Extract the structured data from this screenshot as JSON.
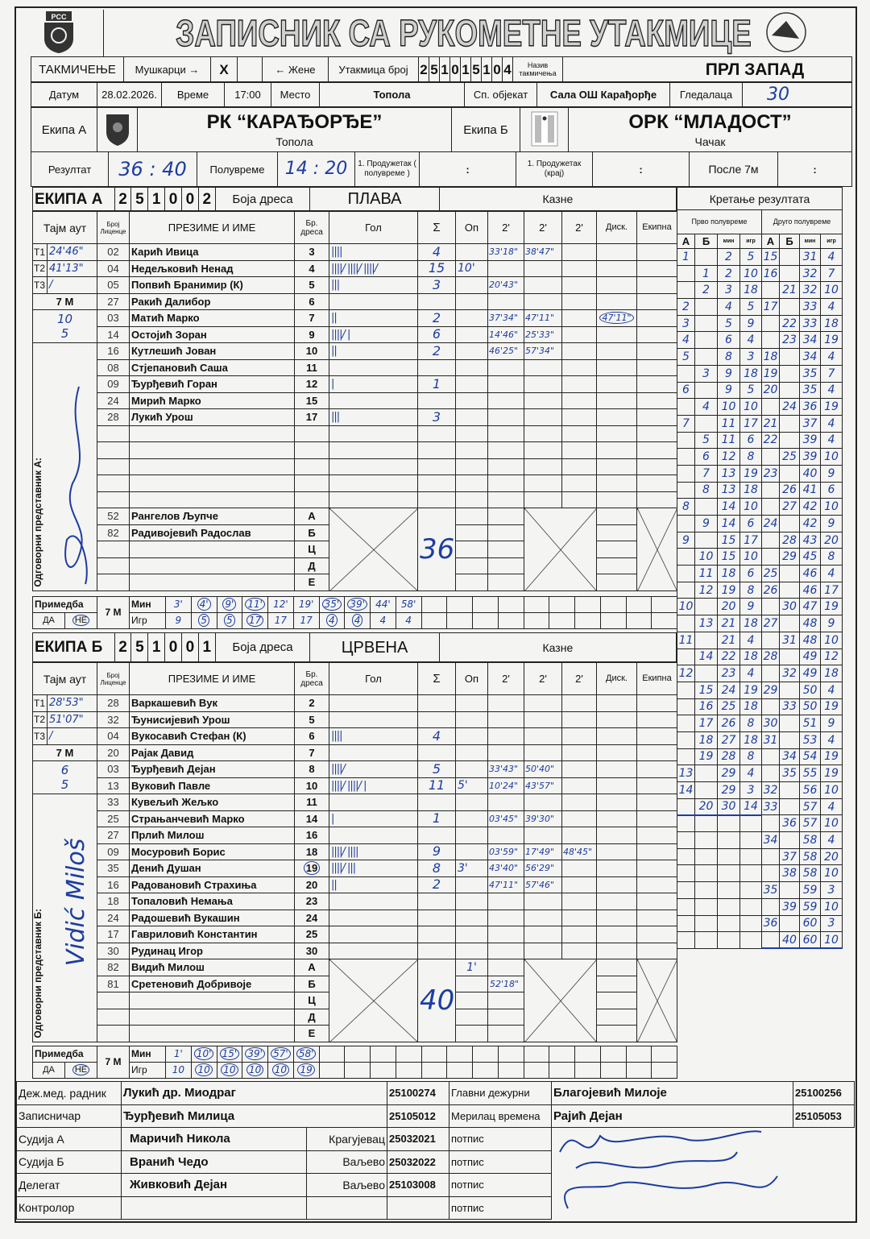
{
  "header": {
    "title": "ЗАПИСНИК СА РУКОМЕТНЕ УТАКМИЦЕ",
    "logo_left": "РСС",
    "competition_label": "ТАКМИЧЕЊЕ",
    "men_label": "Мушкарци →",
    "men_mark": "X",
    "women_mark": "",
    "women_label": "← Жене",
    "match_no_label": "Утакмица број",
    "match_no_digits": [
      "2",
      "5",
      "1",
      "0",
      "1",
      "5",
      "1",
      "0",
      "4"
    ],
    "competition_name_label": "Назив такмичења",
    "competition_name": "ПРЛ ЗАПАД",
    "date_label": "Датум",
    "date": "28.02.2026.",
    "time_label": "Време",
    "time": "17:00",
    "place_label": "Место",
    "place": "Топола",
    "venue_label": "Сп. објекат",
    "venue": "Сала ОШ Карађорђе",
    "spectators_label": "Гледалаца",
    "spectators": "30",
    "team_a_label": "Екипа А",
    "team_a_name": "РК “КАРАЂОРЂЕ”",
    "team_a_city": "Топола",
    "team_b_label": "Екипа Б",
    "team_b_name": "ОРК “МЛАДОСТ”",
    "team_b_city": "Чачак",
    "result_label": "Резултат",
    "result_a": "36",
    "result_b": "40",
    "halftime_label": "Полувреме",
    "halftime_a": "14",
    "halftime_b": "20",
    "et1_half_label": "1. Продужетак ( полувреме )",
    "et1_end_label": "1. Продужетак (крај)",
    "after7m_label": "После 7м",
    "colon": ":"
  },
  "columns": {
    "timeout": "Тајм аут",
    "license": "Број Лиценце",
    "name": "ПРЕЗИМЕ И ИМЕ",
    "jersey": "Бр. дреса",
    "goals": "Гол",
    "sum": "Σ",
    "warning": "Оп",
    "p2": "2'",
    "disq": "Диск.",
    "team": "Екипна",
    "penalties": "Казне",
    "jersey_color": "Боја дреса",
    "rep": "Одговорни представник",
    "remark": "Примедба",
    "yes": "ДА",
    "no": "НЕ",
    "seven_m": "7 M",
    "min": "Мин",
    "player": "Игр"
  },
  "teams": [
    {
      "label": "ЕКИПА А",
      "code": [
        "2",
        "5",
        "1",
        "0",
        "0",
        "2"
      ],
      "color": "ПЛАВА",
      "rep_label": "Одговорни представник А:",
      "timeouts": [
        {
          "t": "T1",
          "v": "24'46\""
        },
        {
          "t": "T2",
          "v": "41'13\""
        },
        {
          "t": "T3",
          "v": "/"
        }
      ],
      "seven_m_attempts": "10",
      "seven_m_goals": "5",
      "total": "36",
      "remark_selected": "НЕ",
      "players": [
        {
          "lic": "02",
          "name": "Карић Ивица",
          "no": "3",
          "goals": 4,
          "sum": "4",
          "op": "",
          "p2": [
            "33'18\"",
            "38'47\""
          ],
          "disk": ""
        },
        {
          "lic": "04",
          "name": "Недељковић Ненад",
          "no": "4",
          "goals": 15,
          "sum": "15",
          "op": "10'",
          "p2": [],
          "disk": ""
        },
        {
          "lic": "05",
          "name": "Попвић Бранимир  (К)",
          "no": "5",
          "goals": 3,
          "sum": "3",
          "op": "",
          "p2": [
            "20'43\""
          ],
          "disk": ""
        },
        {
          "lic": "27",
          "name": "Ракић Далибор",
          "no": "6",
          "goals": 0,
          "sum": "",
          "op": "",
          "p2": [],
          "disk": ""
        },
        {
          "lic": "03",
          "name": "Матић Марко",
          "no": "7",
          "goals": 2,
          "sum": "2",
          "op": "",
          "p2": [
            "37'34\"",
            "47'11\""
          ],
          "disk": "47'11\""
        },
        {
          "lic": "14",
          "name": "Остојић Зоран",
          "no": "9",
          "goals": 6,
          "sum": "6",
          "op": "",
          "p2": [
            "14'46\"",
            "25'33\""
          ],
          "disk": ""
        },
        {
          "lic": "16",
          "name": "Кутлешић Јован",
          "no": "10",
          "goals": 2,
          "sum": "2",
          "op": "",
          "p2": [
            "46'25\"",
            "57'34\""
          ],
          "disk": ""
        },
        {
          "lic": "08",
          "name": "Стјепановић Саша",
          "no": "11",
          "goals": 0,
          "sum": "",
          "op": "",
          "p2": [],
          "disk": ""
        },
        {
          "lic": "09",
          "name": "Ђурђевић Горан",
          "no": "12",
          "goals": 1,
          "sum": "1",
          "op": "",
          "p2": [],
          "disk": ""
        },
        {
          "lic": "24",
          "name": "Мирић Марко",
          "no": "15",
          "goals": 0,
          "sum": "",
          "op": "",
          "p2": [],
          "disk": ""
        },
        {
          "lic": "28",
          "name": "Лукић Урош",
          "no": "17",
          "goals": 3,
          "sum": "3",
          "op": "",
          "p2": [],
          "disk": ""
        }
      ],
      "officials": [
        {
          "lic": "52",
          "name": "Рангелов Љупче",
          "letter": "А",
          "op": "",
          "p2": ""
        },
        {
          "lic": "82",
          "name": "Радивојевић Радослав",
          "letter": "Б",
          "op": "",
          "p2": ""
        },
        {
          "lic": "",
          "name": "",
          "letter": "Ц",
          "op": "",
          "p2": ""
        },
        {
          "lic": "",
          "name": "",
          "letter": "Д",
          "op": "",
          "p2": ""
        },
        {
          "lic": "",
          "name": "",
          "letter": "Е",
          "op": "",
          "p2": ""
        }
      ],
      "seven_m": [
        {
          "min": "3'",
          "pl": "9",
          "circled": false
        },
        {
          "min": "4'",
          "pl": "5",
          "circled": true
        },
        {
          "min": "9'",
          "pl": "5",
          "circled": true
        },
        {
          "min": "11'",
          "pl": "17",
          "circled": true
        },
        {
          "min": "12'",
          "pl": "17",
          "circled": false
        },
        {
          "min": "19'",
          "pl": "17",
          "circled": false
        },
        {
          "min": "35'",
          "pl": "4",
          "circled": true
        },
        {
          "min": "39'",
          "pl": "4",
          "circled": true
        },
        {
          "min": "44'",
          "pl": "4",
          "circled": false
        },
        {
          "min": "58'",
          "pl": "4",
          "circled": false
        }
      ]
    },
    {
      "label": "ЕКИПА Б",
      "code": [
        "2",
        "5",
        "1",
        "0",
        "0",
        "1"
      ],
      "color": "ЦРВЕНА",
      "rep_label": "Одговорни представник Б:",
      "rep_signature": "Vidić Miloš",
      "timeouts": [
        {
          "t": "T1",
          "v": "28'53\""
        },
        {
          "t": "T2",
          "v": "51'07\""
        },
        {
          "t": "T3",
          "v": "/"
        }
      ],
      "seven_m_attempts": "6",
      "seven_m_goals": "5",
      "total": "40",
      "remark_selected": "НЕ",
      "players": [
        {
          "lic": "28",
          "name": "Варкашевић Вук",
          "no": "2",
          "goals": 0,
          "sum": "",
          "op": "",
          "p2": [],
          "disk": ""
        },
        {
          "lic": "32",
          "name": "Ђунисијевић Урош",
          "no": "5",
          "goals": 0,
          "sum": "",
          "op": "",
          "p2": [],
          "disk": ""
        },
        {
          "lic": "04",
          "name": "Вукосавић Стефан (К)",
          "no": "6",
          "goals": 4,
          "sum": "4",
          "op": "",
          "p2": [],
          "disk": ""
        },
        {
          "lic": "20",
          "name": "Рајак Давид",
          "no": "7",
          "goals": 0,
          "sum": "",
          "op": "",
          "p2": [],
          "disk": ""
        },
        {
          "lic": "03",
          "name": "Ђурђевић Дејан",
          "no": "8",
          "goals": 5,
          "sum": "5",
          "op": "",
          "p2": [
            "33'43\"",
            "50'40\""
          ],
          "disk": ""
        },
        {
          "lic": "13",
          "name": "Вуковић Павле",
          "no": "10",
          "goals": 11,
          "sum": "11",
          "op": "5'",
          "p2": [
            "10'24\"",
            "43'57\""
          ],
          "disk": ""
        },
        {
          "lic": "33",
          "name": "Кувељић Жељко",
          "no": "11",
          "goals": 0,
          "sum": "",
          "op": "",
          "p2": [],
          "disk": ""
        },
        {
          "lic": "25",
          "name": "Страњанчевић Марко",
          "no": "14",
          "goals": 1,
          "sum": "1",
          "op": "",
          "p2": [
            "03'45\"",
            "39'30\""
          ],
          "disk": ""
        },
        {
          "lic": "27",
          "name": "Прлић Милош",
          "no": "16",
          "goals": 0,
          "sum": "",
          "op": "",
          "p2": [],
          "disk": ""
        },
        {
          "lic": "09",
          "name": "Мосуровић Борис",
          "no": "18",
          "goals": 9,
          "sum": "9",
          "op": "",
          "p2": [
            "03'59\"",
            "17'49\"",
            "48'45\""
          ],
          "disk": ""
        },
        {
          "lic": "35",
          "name": "Денић Душан",
          "no": "19",
          "no_circled": true,
          "goals": 8,
          "sum": "8",
          "op": "3'",
          "p2": [
            "43'40\"",
            "56'29\""
          ],
          "disk": ""
        },
        {
          "lic": "16",
          "name": "Радовановић Страхиња",
          "no": "20",
          "goals": 2,
          "sum": "2",
          "op": "",
          "p2": [
            "47'11\"",
            "57'46\""
          ],
          "disk": ""
        },
        {
          "lic": "18",
          "name": "Топаловић Немања",
          "no": "23",
          "goals": 0,
          "sum": "",
          "op": "",
          "p2": [],
          "disk": ""
        },
        {
          "lic": "24",
          "name": "Радошевић Вукашин",
          "no": "24",
          "goals": 0,
          "sum": "",
          "op": "",
          "p2": [],
          "disk": ""
        },
        {
          "lic": "17",
          "name": "Гавриловић Константин",
          "no": "25",
          "goals": 0,
          "sum": "",
          "op": "",
          "p2": [],
          "disk": ""
        },
        {
          "lic": "30",
          "name": "Рудинац Игор",
          "no": "30",
          "goals": 0,
          "sum": "",
          "op": "",
          "p2": [],
          "disk": ""
        }
      ],
      "officials": [
        {
          "lic": "82",
          "name": "Видић Милош",
          "letter": "А",
          "op": "1'",
          "p2": ""
        },
        {
          "lic": "81",
          "name": "Сретеновић Добривоје",
          "letter": "Б",
          "op": "",
          "p2": "52'18\""
        },
        {
          "lic": "",
          "name": "",
          "letter": "Ц",
          "op": "",
          "p2": ""
        },
        {
          "lic": "",
          "name": "",
          "letter": "Д",
          "op": "",
          "p2": ""
        },
        {
          "lic": "",
          "name": "",
          "letter": "Е",
          "op": "",
          "p2": ""
        }
      ],
      "seven_m": [
        {
          "min": "1'",
          "pl": "10",
          "circled": false
        },
        {
          "min": "10'",
          "pl": "10",
          "circled": true
        },
        {
          "min": "15'",
          "pl": "10",
          "circled": true
        },
        {
          "min": "39'",
          "pl": "10",
          "circled": true
        },
        {
          "min": "57'",
          "pl": "10",
          "circled": true
        },
        {
          "min": "58'",
          "pl": "19",
          "circled": true
        }
      ]
    }
  ],
  "progression": {
    "title": "Кретање резултата",
    "first_half_label": "Прво полувреме",
    "second_half_label": "Друго полувреме",
    "cols": [
      "А",
      "Б",
      "мин",
      "игр"
    ],
    "first_half": [
      [
        "1",
        "",
        "2",
        "5"
      ],
      [
        "",
        "1",
        "2",
        "10"
      ],
      [
        "",
        "2",
        "3",
        "18"
      ],
      [
        "2",
        "",
        "4",
        "5"
      ],
      [
        "3",
        "",
        "5",
        "9"
      ],
      [
        "4",
        "",
        "6",
        "4"
      ],
      [
        "5",
        "",
        "8",
        "3"
      ],
      [
        "",
        "3",
        "9",
        "18"
      ],
      [
        "6",
        "",
        "9",
        "5"
      ],
      [
        "",
        "4",
        "10",
        "10"
      ],
      [
        "7",
        "",
        "11",
        "17"
      ],
      [
        "",
        "5",
        "11",
        "6"
      ],
      [
        "",
        "6",
        "12",
        "8"
      ],
      [
        "",
        "7",
        "13",
        "19"
      ],
      [
        "",
        "8",
        "13",
        "18"
      ],
      [
        "8",
        "",
        "14",
        "10"
      ],
      [
        "",
        "9",
        "14",
        "6"
      ],
      [
        "9",
        "",
        "15",
        "17"
      ],
      [
        "",
        "10",
        "15",
        "10"
      ],
      [
        "",
        "11",
        "18",
        "6"
      ],
      [
        "",
        "12",
        "19",
        "8"
      ],
      [
        "10",
        "",
        "20",
        "9"
      ],
      [
        "",
        "13",
        "21",
        "18"
      ],
      [
        "11",
        "",
        "21",
        "4"
      ],
      [
        "",
        "14",
        "22",
        "18"
      ],
      [
        "12",
        "",
        "23",
        "4"
      ],
      [
        "",
        "15",
        "24",
        "19"
      ],
      [
        "",
        "16",
        "25",
        "18"
      ],
      [
        "",
        "17",
        "26",
        "8"
      ],
      [
        "",
        "18",
        "27",
        "18"
      ],
      [
        "",
        "19",
        "28",
        "8"
      ],
      [
        "13",
        "",
        "29",
        "4"
      ],
      [
        "14",
        "",
        "29",
        "3"
      ],
      [
        "",
        "20",
        "30",
        "14"
      ]
    ],
    "second_half": [
      [
        "15",
        "",
        "31",
        "4"
      ],
      [
        "16",
        "",
        "32",
        "7"
      ],
      [
        "",
        "21",
        "32",
        "10"
      ],
      [
        "17",
        "",
        "33",
        "4"
      ],
      [
        "",
        "22",
        "33",
        "18"
      ],
      [
        "",
        "23",
        "34",
        "19"
      ],
      [
        "18",
        "",
        "34",
        "4"
      ],
      [
        "19",
        "",
        "35",
        "7"
      ],
      [
        "20",
        "",
        "35",
        "4"
      ],
      [
        "",
        "24",
        "36",
        "19"
      ],
      [
        "21",
        "",
        "37",
        "4"
      ],
      [
        "22",
        "",
        "39",
        "4"
      ],
      [
        "",
        "25",
        "39",
        "10"
      ],
      [
        "23",
        "",
        "40",
        "9"
      ],
      [
        "",
        "26",
        "41",
        "6"
      ],
      [
        "",
        "27",
        "42",
        "10"
      ],
      [
        "24",
        "",
        "42",
        "9"
      ],
      [
        "",
        "28",
        "43",
        "20"
      ],
      [
        "",
        "29",
        "45",
        "8"
      ],
      [
        "25",
        "",
        "46",
        "4"
      ],
      [
        "26",
        "",
        "46",
        "17"
      ],
      [
        "",
        "30",
        "47",
        "19"
      ],
      [
        "27",
        "",
        "48",
        "9"
      ],
      [
        "",
        "31",
        "48",
        "10"
      ],
      [
        "28",
        "",
        "49",
        "12"
      ],
      [
        "",
        "32",
        "49",
        "18"
      ],
      [
        "29",
        "",
        "50",
        "4"
      ],
      [
        "",
        "33",
        "50",
        "19"
      ],
      [
        "30",
        "",
        "51",
        "9"
      ],
      [
        "31",
        "",
        "53",
        "4"
      ],
      [
        "",
        "34",
        "54",
        "19"
      ],
      [
        "",
        "35",
        "55",
        "19"
      ],
      [
        "32",
        "",
        "56",
        "10"
      ],
      [
        "33",
        "",
        "57",
        "4"
      ],
      [
        "",
        "36",
        "57",
        "10"
      ],
      [
        "34",
        "",
        "58",
        "4"
      ],
      [
        "",
        "37",
        "58",
        "20"
      ],
      [
        "",
        "38",
        "58",
        "10"
      ],
      [
        "35",
        "",
        "59",
        "3"
      ],
      [
        "",
        "39",
        "59",
        "10"
      ],
      [
        "36",
        "",
        "60",
        "3"
      ],
      [
        "",
        "40",
        "60",
        "10"
      ]
    ]
  },
  "officials_table": [
    {
      "role": "Деж.мед. радник",
      "name": "Лукић др. Миодраг",
      "city": "",
      "id": "25100274",
      "role2": "Главни дежурни",
      "name2": "Благојевић Милоје",
      "id2": "25100256"
    },
    {
      "role": "Записничар",
      "name": "Ђурђевић Милица",
      "city": "",
      "id": "25105012",
      "role2": "Мерилац времена",
      "name2": "Рајић Дејан",
      "id2": "25105053"
    },
    {
      "role": "Судија А",
      "name": "Маричић Никола",
      "city": "Крагујевац",
      "id": "25032021",
      "role2": "потпис",
      "name2": "",
      "id2": ""
    },
    {
      "role": "Судија Б",
      "name": "Вранић Чедо",
      "city": "Ваљево",
      "id": "25032022",
      "role2": "потпис",
      "name2": "",
      "id2": ""
    },
    {
      "role": "Делегат",
      "name": "Живковић Дејан",
      "city": "Ваљево",
      "id": "25103008",
      "role2": "потпис",
      "name2": "",
      "id2": ""
    },
    {
      "role": "Контролор",
      "name": "",
      "city": "",
      "id": "",
      "role2": "потпис",
      "name2": "",
      "id2": ""
    }
  ],
  "colors": {
    "ink": "#1d3d9e",
    "lines": "#222222",
    "paper": "#f4f4f2"
  }
}
